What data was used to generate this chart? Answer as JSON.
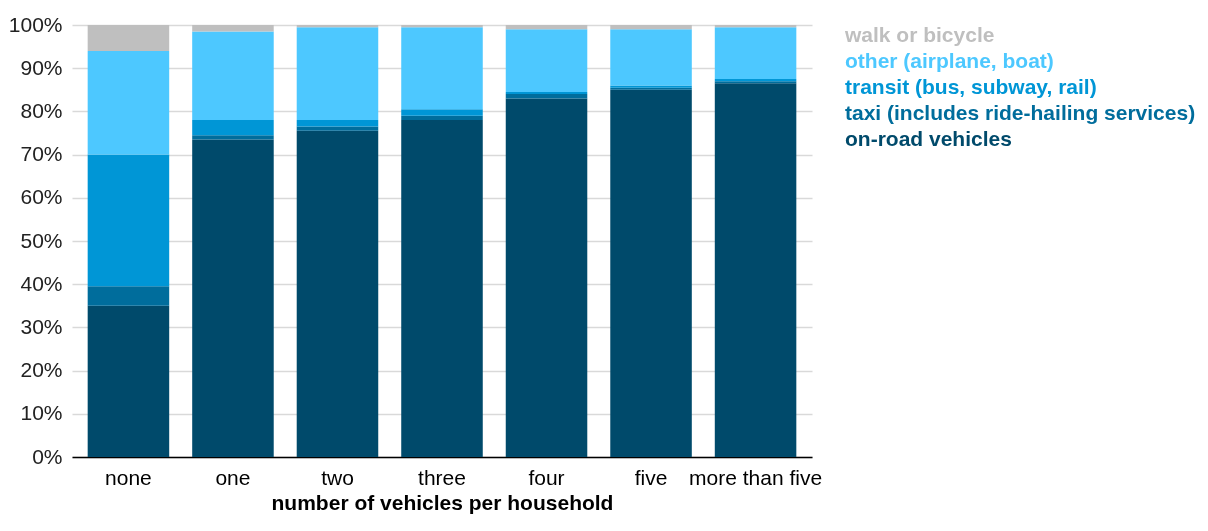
{
  "chart_data": {
    "type": "bar",
    "stacked": true,
    "xlabel": "number of vehicles per household",
    "categories": [
      "none",
      "one",
      "two",
      "three",
      "four",
      "five",
      "more than five"
    ],
    "series": [
      {
        "name": "on-road vehicles",
        "color": "#004a6b",
        "values": [
          35,
          73.5,
          75.5,
          78,
          83,
          85,
          86.5
        ]
      },
      {
        "name": "taxi (includes ride-hailing services)",
        "color": "#006d9c",
        "values": [
          4.5,
          1,
          1,
          1,
          1,
          0.5,
          0.5
        ]
      },
      {
        "name": "transit (bus, subway, rail)",
        "color": "#0096d6",
        "values": [
          30.5,
          3.5,
          1.5,
          1.5,
          0.5,
          0.5,
          0.5
        ]
      },
      {
        "name": "other (airplane, boat)",
        "color": "#4dc8ff",
        "values": [
          24,
          20.5,
          21.5,
          19,
          14.5,
          13,
          12
        ]
      },
      {
        "name": "walk or bicycle",
        "color": "#bfbfbf",
        "values": [
          6,
          1.5,
          0.5,
          0.5,
          1,
          1,
          0.5
        ]
      }
    ],
    "ylim": [
      0,
      100
    ],
    "yticks": [
      {
        "value": 0,
        "label": "0%"
      },
      {
        "value": 10,
        "label": "10%"
      },
      {
        "value": 20,
        "label": "20%"
      },
      {
        "value": 30,
        "label": "30%"
      },
      {
        "value": 40,
        "label": "40%"
      },
      {
        "value": 50,
        "label": "50%"
      },
      {
        "value": 60,
        "label": "60%"
      },
      {
        "value": 70,
        "label": "70%"
      },
      {
        "value": 80,
        "label": "80%"
      },
      {
        "value": 90,
        "label": "90%"
      },
      {
        "value": 100,
        "label": "100%"
      }
    ],
    "grid": "y",
    "legend": "right"
  }
}
